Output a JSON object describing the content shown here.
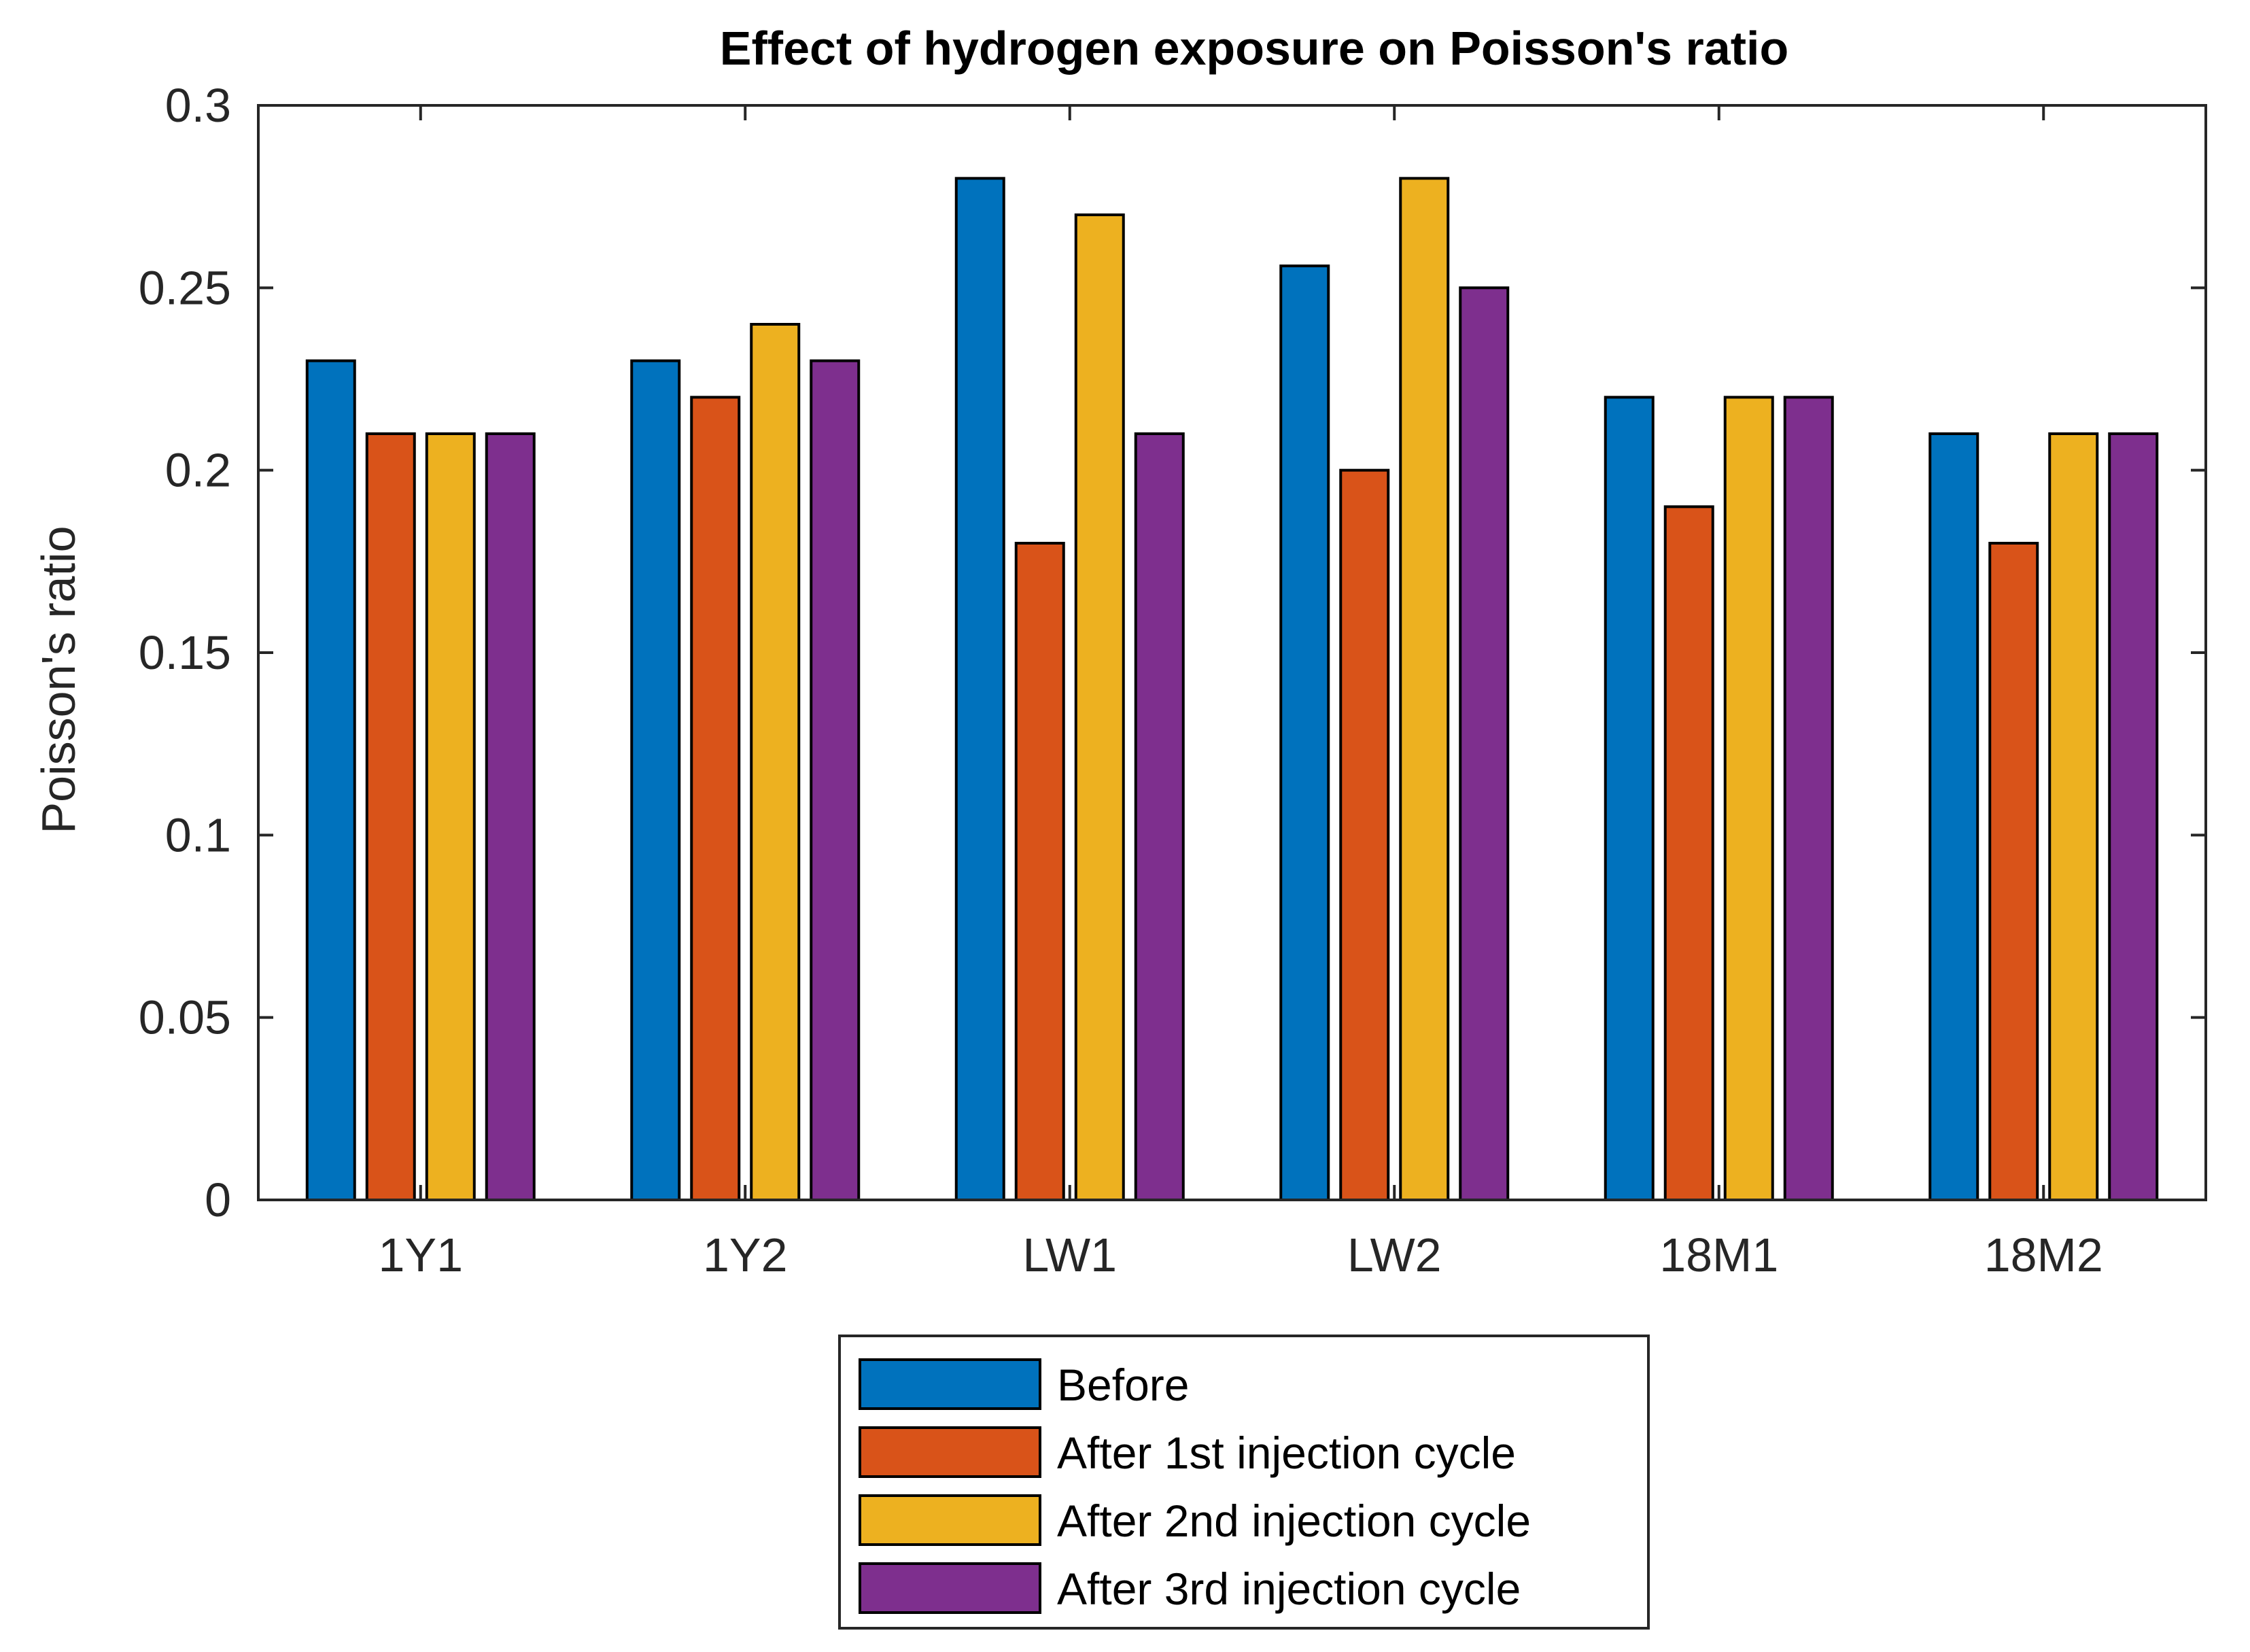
{
  "chart_data": {
    "type": "bar",
    "title": "Effect of hydrogen exposure on Poisson's ratio",
    "xlabel": "",
    "ylabel": "Poisson's ratio",
    "ylim": [
      0,
      0.3
    ],
    "yticks": [
      "0",
      "0.05",
      "0.1",
      "0.15",
      "0.2",
      "0.25",
      "0.3"
    ],
    "ytick_values": [
      0,
      0.05,
      0.1,
      0.15,
      0.2,
      0.25,
      0.3
    ],
    "categories": [
      "1Y1",
      "1Y2",
      "LW1",
      "LW2",
      "18M1",
      "18M2"
    ],
    "series": [
      {
        "name": "Before",
        "color": "#0072BD",
        "values": [
          0.23,
          0.23,
          0.28,
          0.256,
          0.22,
          0.21
        ]
      },
      {
        "name": "After 1st injection cycle",
        "color": "#D95319",
        "values": [
          0.21,
          0.22,
          0.18,
          0.2,
          0.19,
          0.18
        ]
      },
      {
        "name": "After 2nd injection cycle",
        "color": "#EDB120",
        "values": [
          0.21,
          0.24,
          0.27,
          0.28,
          0.22,
          0.21
        ]
      },
      {
        "name": "After 3rd injection cycle",
        "color": "#7E2F8E",
        "values": [
          0.21,
          0.23,
          0.21,
          0.25,
          0.22,
          0.21
        ]
      }
    ],
    "grid": false,
    "legend_position": "bottom-center"
  }
}
